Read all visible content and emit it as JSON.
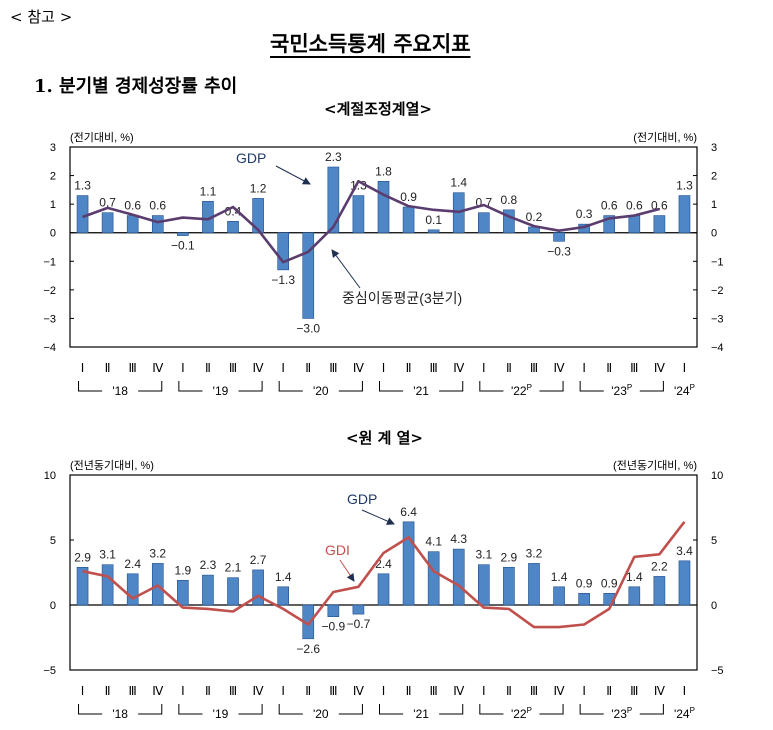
{
  "header": {
    "reference": "< 참고 >",
    "title": "국민소득통계 주요지표",
    "section": "1. 분기별 경제성장률 추이"
  },
  "colors": {
    "bar": "#4f86c6",
    "bar_edge": "#1f4f8f",
    "ma_line": "#5a3d6e",
    "gdi_line": "#c0504d"
  },
  "chart_data": [
    {
      "type": "bar",
      "title": "<계절조정계열>",
      "ylabel_left": "(전기대비, %)",
      "ylabel_right": "(전기대비, %)",
      "ylim": [
        -4,
        3
      ],
      "yticks": [
        3,
        2,
        1,
        0,
        -1,
        -2,
        -3,
        -4
      ],
      "quarters": [
        "Ⅰ",
        "Ⅱ",
        "Ⅲ",
        "Ⅳ",
        "Ⅰ",
        "Ⅱ",
        "Ⅲ",
        "Ⅳ",
        "Ⅰ",
        "Ⅱ",
        "Ⅲ",
        "Ⅳ",
        "Ⅰ",
        "Ⅱ",
        "Ⅲ",
        "Ⅳ",
        "Ⅰ",
        "Ⅱ",
        "Ⅲ",
        "Ⅳ",
        "Ⅰ",
        "Ⅱ",
        "Ⅲ",
        "Ⅳ",
        "Ⅰ"
      ],
      "years": [
        {
          "label": "'18",
          "sup": ""
        },
        {
          "label": "'19",
          "sup": ""
        },
        {
          "label": "'20",
          "sup": ""
        },
        {
          "label": "'21",
          "sup": ""
        },
        {
          "label": "'22",
          "sup": "P"
        },
        {
          "label": "'23",
          "sup": "P"
        },
        {
          "label": "'24",
          "sup": "P"
        }
      ],
      "series": [
        {
          "name": "GDP",
          "kind": "bar",
          "values": [
            1.3,
            0.7,
            0.6,
            0.6,
            -0.1,
            1.1,
            0.4,
            1.2,
            -1.3,
            -3.0,
            2.3,
            1.3,
            1.8,
            0.9,
            0.1,
            1.4,
            0.7,
            0.8,
            0.2,
            -0.3,
            0.3,
            0.6,
            0.6,
            0.6,
            1.3
          ]
        },
        {
          "name": "중심이동평균(3분기)",
          "kind": "line",
          "values": [
            0.55,
            0.87,
            0.63,
            0.37,
            0.53,
            0.47,
            0.9,
            0.1,
            -1.03,
            -0.67,
            0.2,
            1.8,
            1.33,
            0.93,
            0.8,
            0.73,
            0.97,
            0.57,
            0.23,
            0.07,
            0.2,
            0.5,
            0.6,
            0.83,
            null
          ]
        }
      ],
      "data_labels": [
        "1.3",
        "0.7",
        "0.6",
        "0.6",
        "−0.1",
        "1.1",
        "0.4",
        "1.2",
        "−1.3",
        "−3.0",
        "2.3",
        "1.3",
        "1.8",
        "0.9",
        "0.1",
        "1.4",
        "0.7",
        "0.8",
        "0.2",
        "−0.3",
        "0.3",
        "0.6",
        "0.6",
        "0.6",
        "1.3"
      ],
      "annotations": [
        {
          "text": "GDP"
        },
        {
          "text": "중심이동평균(3분기)"
        }
      ],
      "grid": false
    },
    {
      "type": "bar",
      "title": "<원 계 열>",
      "ylabel_left": "(전년동기대비, %)",
      "ylabel_right": "(전년동기대비, %)",
      "ylim": [
        -5,
        10
      ],
      "yticks": [
        10,
        5,
        0,
        -5
      ],
      "quarters": [
        "Ⅰ",
        "Ⅱ",
        "Ⅲ",
        "Ⅳ",
        "Ⅰ",
        "Ⅱ",
        "Ⅲ",
        "Ⅳ",
        "Ⅰ",
        "Ⅱ",
        "Ⅲ",
        "Ⅳ",
        "Ⅰ",
        "Ⅱ",
        "Ⅲ",
        "Ⅳ",
        "Ⅰ",
        "Ⅱ",
        "Ⅲ",
        "Ⅳ",
        "Ⅰ",
        "Ⅱ",
        "Ⅲ",
        "Ⅳ",
        "Ⅰ"
      ],
      "years": [
        {
          "label": "'18",
          "sup": ""
        },
        {
          "label": "'19",
          "sup": ""
        },
        {
          "label": "'20",
          "sup": ""
        },
        {
          "label": "'21",
          "sup": ""
        },
        {
          "label": "'22",
          "sup": "P"
        },
        {
          "label": "'23",
          "sup": "P"
        },
        {
          "label": "'24",
          "sup": "P"
        }
      ],
      "series": [
        {
          "name": "GDP",
          "kind": "bar",
          "values": [
            2.9,
            3.1,
            2.4,
            3.2,
            1.9,
            2.3,
            2.1,
            2.7,
            1.4,
            -2.6,
            -0.9,
            -0.7,
            2.4,
            6.4,
            4.1,
            4.3,
            3.1,
            2.9,
            3.2,
            1.4,
            0.9,
            0.9,
            1.4,
            2.2,
            3.4
          ]
        },
        {
          "name": "GDI",
          "kind": "line",
          "values": [
            2.6,
            2.2,
            0.5,
            1.5,
            -0.2,
            -0.3,
            -0.5,
            0.7,
            -0.3,
            -1.5,
            1.0,
            1.4,
            4.0,
            5.2,
            2.6,
            1.5,
            -0.2,
            -0.3,
            -1.7,
            -1.7,
            -1.5,
            -0.3,
            3.7,
            3.9,
            6.4
          ]
        }
      ],
      "data_labels": [
        "2.9",
        "3.1",
        "2.4",
        "3.2",
        "1.9",
        "2.3",
        "2.1",
        "2.7",
        "1.4",
        "−2.6",
        "−0.9",
        "−0.7",
        "2.4",
        "6.4",
        "4.1",
        "4.3",
        "3.1",
        "2.9",
        "3.2",
        "1.4",
        "0.9",
        "0.9",
        "1.4",
        "2.2",
        "3.4"
      ],
      "annotations": [
        {
          "text": "GDP"
        },
        {
          "text": "GDI"
        }
      ],
      "grid": false
    }
  ]
}
